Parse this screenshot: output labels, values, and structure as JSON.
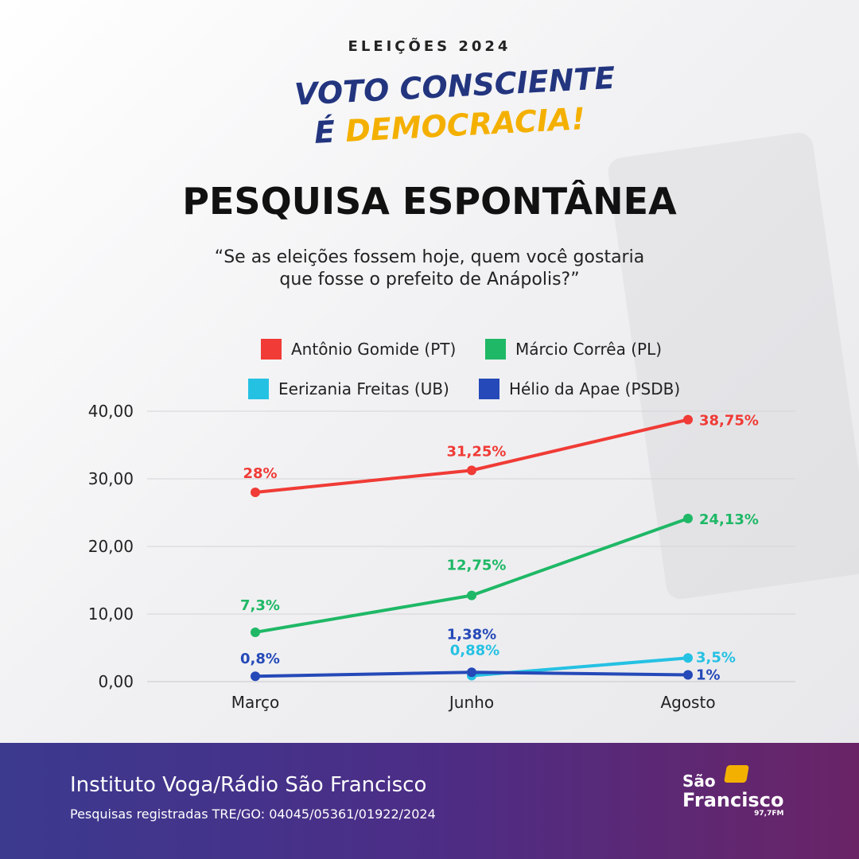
{
  "header": {
    "kicker": "ELEIÇÕES 2024",
    "slogan_line1": "VOTO CONSCIENTE",
    "slogan_line2_a": "É ",
    "slogan_line2_b": "DEMOCRACIA!",
    "title": "PESQUISA ESPONTÂNEA",
    "subtitle_line1": "“Se as eleições fossem hoje, quem você gostaria",
    "subtitle_line2": "que fosse o prefeito de Anápolis?”"
  },
  "chart_data": {
    "type": "line",
    "categories": [
      "Março",
      "Junho",
      "Agosto"
    ],
    "ylim": [
      0,
      40
    ],
    "yticks": [
      "0,00",
      "10,00",
      "20,00",
      "30,00",
      "40,00"
    ],
    "grid": true,
    "legend_position": "top",
    "series": [
      {
        "name": "Antônio Gomide (PT)",
        "color": "#f03b36",
        "values": [
          28,
          31.25,
          38.75
        ],
        "labels": [
          "28%",
          "31,25%",
          "38,75%"
        ]
      },
      {
        "name": "Márcio Corrêa (PL)",
        "color": "#1fb866",
        "values": [
          7.3,
          12.75,
          24.13
        ],
        "labels": [
          "7,3%",
          "12,75%",
          "24,13%"
        ]
      },
      {
        "name": "Eerizania Freitas (UB)",
        "color": "#25c1e3",
        "values": [
          null,
          0.88,
          3.5
        ],
        "labels": [
          null,
          "0,88%",
          "3,5%"
        ]
      },
      {
        "name": "Hélio da Apae (PSDB)",
        "color": "#2549b8",
        "values": [
          0.8,
          1.38,
          1
        ],
        "labels": [
          "0,8%",
          "1,38%",
          "1%"
        ]
      }
    ]
  },
  "footer": {
    "title": "Instituto Voga/Rádio São Francisco",
    "registration": "Pesquisas registradas TRE/GO: 04045/05361/01922/2024",
    "logo_line1": "São",
    "logo_line2": "Francisco",
    "logo_line3": "97,7FM"
  }
}
